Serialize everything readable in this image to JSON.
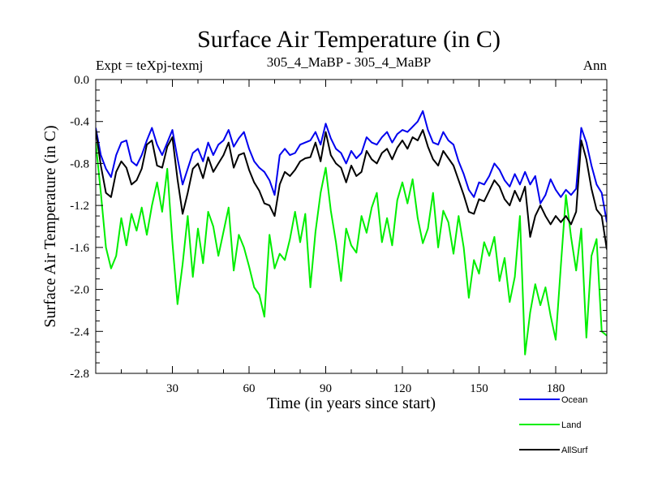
{
  "chart_data": {
    "type": "line",
    "title": "Surface Air Temperature (in C)",
    "subtitle_left": "Expt = teXpj-texmj",
    "subtitle_center": "305_4_MaBP - 305_4_MaBP",
    "subtitle_right": "Ann",
    "xlabel": "Time (in years since start)",
    "ylabel": "Surface Air Temperature (in C)",
    "xlim": [
      0,
      200
    ],
    "ylim": [
      -2.8,
      0.0
    ],
    "x_ticks": [
      30,
      60,
      90,
      120,
      150,
      180
    ],
    "x_tick_labels": [
      "30",
      "60",
      "90",
      "120",
      "150",
      "180"
    ],
    "y_ticks": [
      0.0,
      -0.4,
      -0.8,
      -1.2,
      -1.6,
      -2.0,
      -2.4,
      -2.8
    ],
    "y_tick_labels": [
      "0.0",
      "-0.4",
      "-0.8",
      "-1.2",
      "-1.6",
      "-2.0",
      "-2.4",
      "-2.8"
    ],
    "x": [
      0,
      2,
      4,
      6,
      8,
      10,
      12,
      14,
      16,
      18,
      20,
      22,
      24,
      26,
      28,
      30,
      32,
      34,
      36,
      38,
      40,
      42,
      44,
      46,
      48,
      50,
      52,
      54,
      56,
      58,
      60,
      62,
      64,
      66,
      68,
      70,
      72,
      74,
      76,
      78,
      80,
      82,
      84,
      86,
      88,
      90,
      92,
      94,
      96,
      98,
      100,
      102,
      104,
      106,
      108,
      110,
      112,
      114,
      116,
      118,
      120,
      122,
      124,
      126,
      128,
      130,
      132,
      134,
      136,
      138,
      140,
      142,
      144,
      146,
      148,
      150,
      152,
      154,
      156,
      158,
      160,
      162,
      164,
      166,
      168,
      170,
      172,
      174,
      176,
      178,
      180,
      182,
      184,
      186,
      188,
      190,
      192,
      194,
      196,
      198,
      200
    ],
    "series": [
      {
        "name": "Ocean",
        "color": "#0000ee",
        "values": [
          -0.46,
          -0.72,
          -0.85,
          -0.93,
          -0.72,
          -0.6,
          -0.58,
          -0.78,
          -0.82,
          -0.72,
          -0.58,
          -0.46,
          -0.62,
          -0.72,
          -0.6,
          -0.48,
          -0.75,
          -1.0,
          -0.85,
          -0.7,
          -0.66,
          -0.78,
          -0.6,
          -0.72,
          -0.62,
          -0.58,
          -0.48,
          -0.64,
          -0.56,
          -0.5,
          -0.66,
          -0.78,
          -0.84,
          -0.88,
          -0.96,
          -1.1,
          -0.72,
          -0.66,
          -0.72,
          -0.7,
          -0.62,
          -0.6,
          -0.58,
          -0.5,
          -0.62,
          -0.42,
          -0.56,
          -0.66,
          -0.7,
          -0.8,
          -0.68,
          -0.75,
          -0.7,
          -0.55,
          -0.6,
          -0.62,
          -0.55,
          -0.5,
          -0.6,
          -0.52,
          -0.48,
          -0.5,
          -0.45,
          -0.4,
          -0.3,
          -0.48,
          -0.6,
          -0.62,
          -0.5,
          -0.58,
          -0.62,
          -0.78,
          -0.9,
          -1.05,
          -1.12,
          -0.98,
          -1.0,
          -0.92,
          -0.8,
          -0.86,
          -0.96,
          -1.02,
          -0.9,
          -1.0,
          -0.88,
          -1.0,
          -0.92,
          -1.18,
          -1.1,
          -0.95,
          -1.05,
          -1.12,
          -1.05,
          -1.1,
          -1.04,
          -0.46,
          -0.6,
          -0.82,
          -1.0,
          -1.08,
          -1.36
        ]
      },
      {
        "name": "Land",
        "color": "#00ee00",
        "values": [
          -0.6,
          -1.08,
          -1.6,
          -1.8,
          -1.68,
          -1.32,
          -1.58,
          -1.28,
          -1.44,
          -1.22,
          -1.48,
          -1.2,
          -0.98,
          -1.26,
          -0.85,
          -1.55,
          -2.14,
          -1.76,
          -1.3,
          -1.88,
          -1.42,
          -1.75,
          -1.26,
          -1.4,
          -1.68,
          -1.45,
          -1.22,
          -1.82,
          -1.48,
          -1.6,
          -1.78,
          -1.98,
          -2.05,
          -2.26,
          -1.48,
          -1.8,
          -1.66,
          -1.72,
          -1.52,
          -1.26,
          -1.55,
          -1.28,
          -1.98,
          -1.45,
          -1.08,
          -0.84,
          -1.25,
          -1.55,
          -1.92,
          -1.42,
          -1.58,
          -1.65,
          -1.3,
          -1.46,
          -1.22,
          -1.08,
          -1.55,
          -1.32,
          -1.58,
          -1.15,
          -0.98,
          -1.18,
          -0.95,
          -1.32,
          -1.56,
          -1.42,
          -1.08,
          -1.6,
          -1.25,
          -1.36,
          -1.66,
          -1.3,
          -1.6,
          -2.08,
          -1.72,
          -1.85,
          -1.55,
          -1.68,
          -1.5,
          -1.92,
          -1.7,
          -2.12,
          -1.88,
          -1.3,
          -2.62,
          -2.22,
          -1.95,
          -2.15,
          -1.98,
          -2.25,
          -2.48,
          -1.78,
          -1.1,
          -1.5,
          -1.82,
          -1.42,
          -2.46,
          -1.68,
          -1.52,
          -2.4,
          -2.44
        ]
      },
      {
        "name": "AllSurf",
        "color": "#000000",
        "values": [
          -0.48,
          -0.82,
          -1.08,
          -1.12,
          -0.88,
          -0.78,
          -0.84,
          -1.0,
          -0.96,
          -0.85,
          -0.62,
          -0.58,
          -0.82,
          -0.84,
          -0.64,
          -0.55,
          -0.95,
          -1.28,
          -1.08,
          -0.85,
          -0.8,
          -0.94,
          -0.74,
          -0.88,
          -0.8,
          -0.72,
          -0.6,
          -0.84,
          -0.72,
          -0.7,
          -0.86,
          -0.98,
          -1.06,
          -1.18,
          -1.2,
          -1.3,
          -1.0,
          -0.88,
          -0.92,
          -0.86,
          -0.78,
          -0.75,
          -0.74,
          -0.6,
          -0.78,
          -0.5,
          -0.72,
          -0.8,
          -0.84,
          -0.98,
          -0.82,
          -0.92,
          -0.88,
          -0.68,
          -0.76,
          -0.8,
          -0.7,
          -0.66,
          -0.76,
          -0.65,
          -0.58,
          -0.66,
          -0.55,
          -0.58,
          -0.48,
          -0.64,
          -0.76,
          -0.82,
          -0.68,
          -0.75,
          -0.82,
          -0.96,
          -1.1,
          -1.26,
          -1.28,
          -1.14,
          -1.16,
          -1.06,
          -0.96,
          -1.02,
          -1.14,
          -1.2,
          -1.06,
          -1.16,
          -1.02,
          -1.5,
          -1.3,
          -1.2,
          -1.3,
          -1.38,
          -1.3,
          -1.36,
          -1.3,
          -1.38,
          -1.26,
          -0.58,
          -0.76,
          -1.04,
          -1.24,
          -1.3,
          -1.62
        ]
      }
    ],
    "legend_position": "bottom-right"
  }
}
